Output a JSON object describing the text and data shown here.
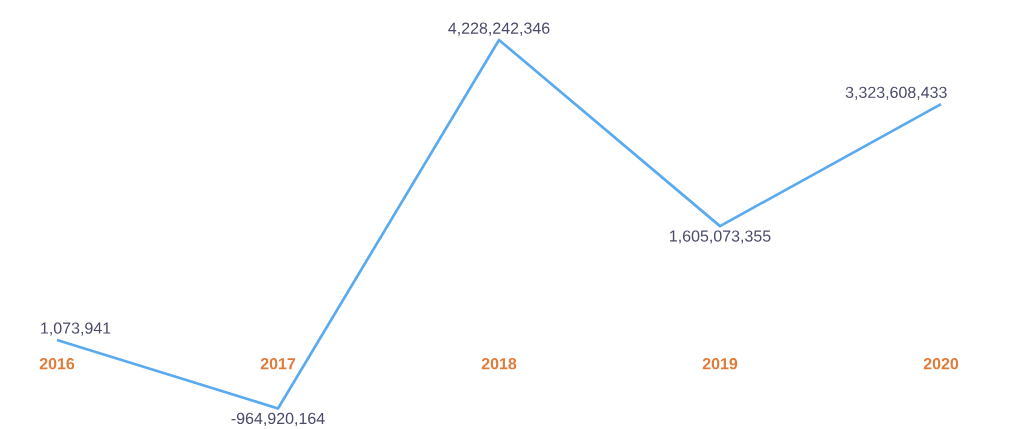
{
  "chart_data": {
    "type": "line",
    "categories": [
      "2016",
      "2017",
      "2018",
      "2019",
      "2020"
    ],
    "series": [
      {
        "color": "#5aaaf0",
        "values": [
          1073941,
          -964920164,
          4228242346,
          1605073355,
          3323608433
        ],
        "value_labels": [
          "1,073,941",
          "-964,920,164",
          "4,228,242,346",
          "1,605,073,355",
          "3,323,608,433"
        ]
      }
    ],
    "grid": false,
    "marker": "none",
    "line_style": "solid",
    "tick_labels": "x"
  }
}
